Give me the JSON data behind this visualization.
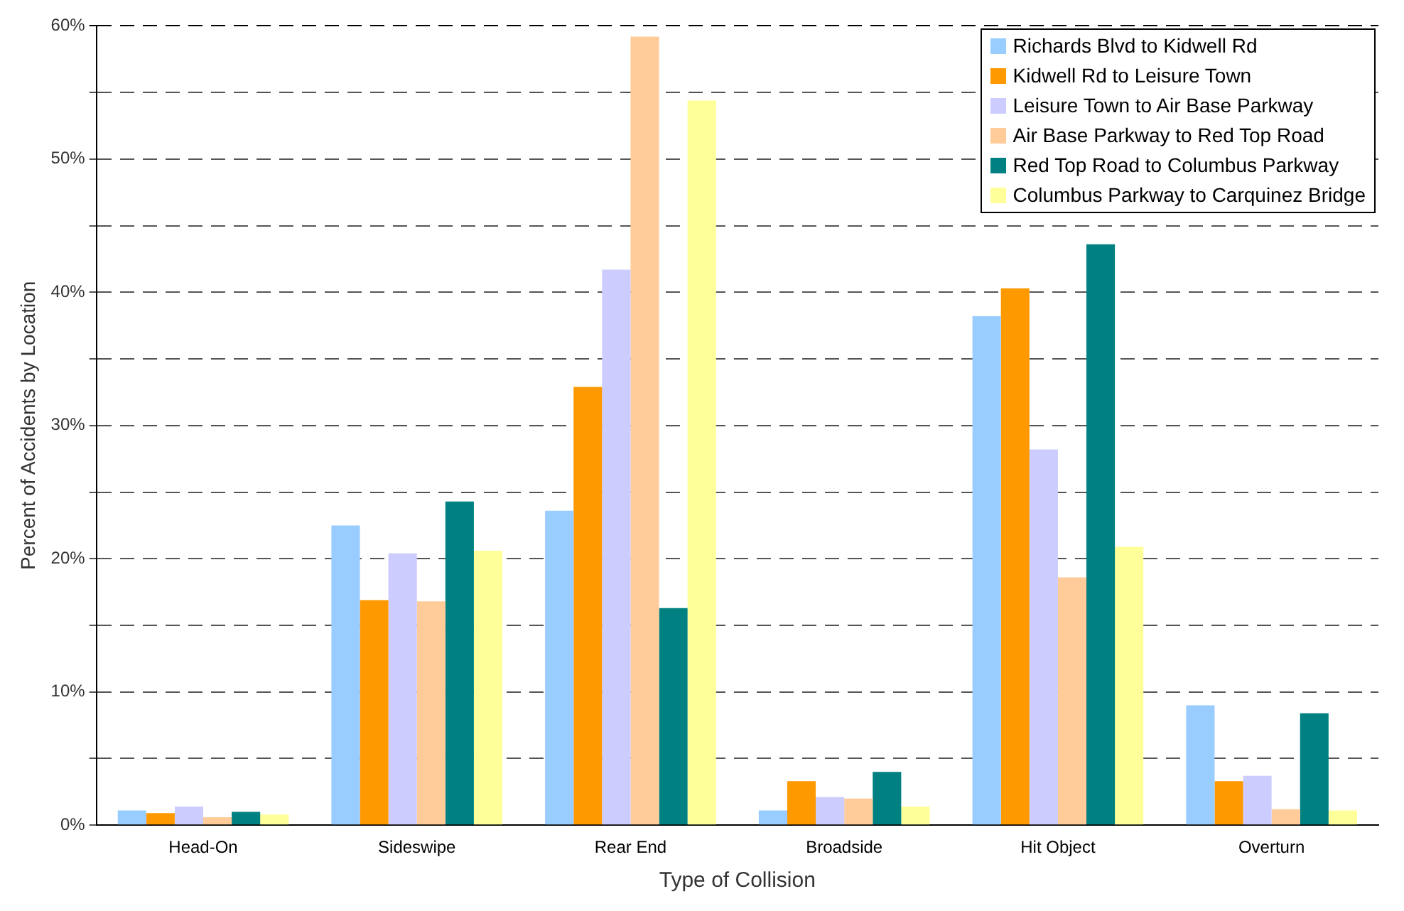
{
  "chart_data": {
    "type": "bar",
    "xlabel": "Type of Collision",
    "ylabel": "Percent of Accidents by Location",
    "categories": [
      "Head-On",
      "Sideswipe",
      "Rear End",
      "Broadside",
      "Hit Object",
      "Overturn"
    ],
    "series": [
      {
        "name": "Richards Blvd to Kidwell Rd",
        "color": "#99ccff",
        "values": [
          1.1,
          22.5,
          23.6,
          1.1,
          38.2,
          9.0
        ]
      },
      {
        "name": "Kidwell Rd to Leisure Town",
        "color": "#ff9900",
        "values": [
          0.9,
          16.9,
          32.9,
          3.3,
          40.3,
          3.3
        ]
      },
      {
        "name": "Leisure Town to Air Base Parkway",
        "color": "#ccccff",
        "values": [
          1.4,
          20.4,
          41.7,
          2.1,
          28.2,
          3.7
        ]
      },
      {
        "name": "Air Base Parkway to Red Top Road",
        "color": "#ffcc99",
        "values": [
          0.6,
          16.8,
          59.2,
          2.0,
          18.6,
          1.2
        ]
      },
      {
        "name": "Red Top Road to Columbus Parkway",
        "color": "#008080",
        "values": [
          1.0,
          24.3,
          16.3,
          4.0,
          43.6,
          8.4
        ]
      },
      {
        "name": "Columbus Parkway to Carquinez Bridge",
        "color": "#ffff99",
        "values": [
          0.8,
          20.6,
          54.4,
          1.4,
          20.9,
          1.1
        ]
      }
    ],
    "ylim": [
      0,
      60
    ],
    "yticks": [
      {
        "value": 0,
        "label": "0%"
      },
      {
        "value": 5,
        "label": null
      },
      {
        "value": 10,
        "label": "10%"
      },
      {
        "value": 15,
        "label": null
      },
      {
        "value": 20,
        "label": "20%"
      },
      {
        "value": 25,
        "label": null
      },
      {
        "value": 30,
        "label": "30%"
      },
      {
        "value": 35,
        "label": null
      },
      {
        "value": 40,
        "label": "40%"
      },
      {
        "value": 45,
        "label": null
      },
      {
        "value": 50,
        "label": "50%"
      },
      {
        "value": 55,
        "label": null
      },
      {
        "value": 60,
        "label": "60%"
      }
    ],
    "grid": "y",
    "legend": "top right"
  }
}
